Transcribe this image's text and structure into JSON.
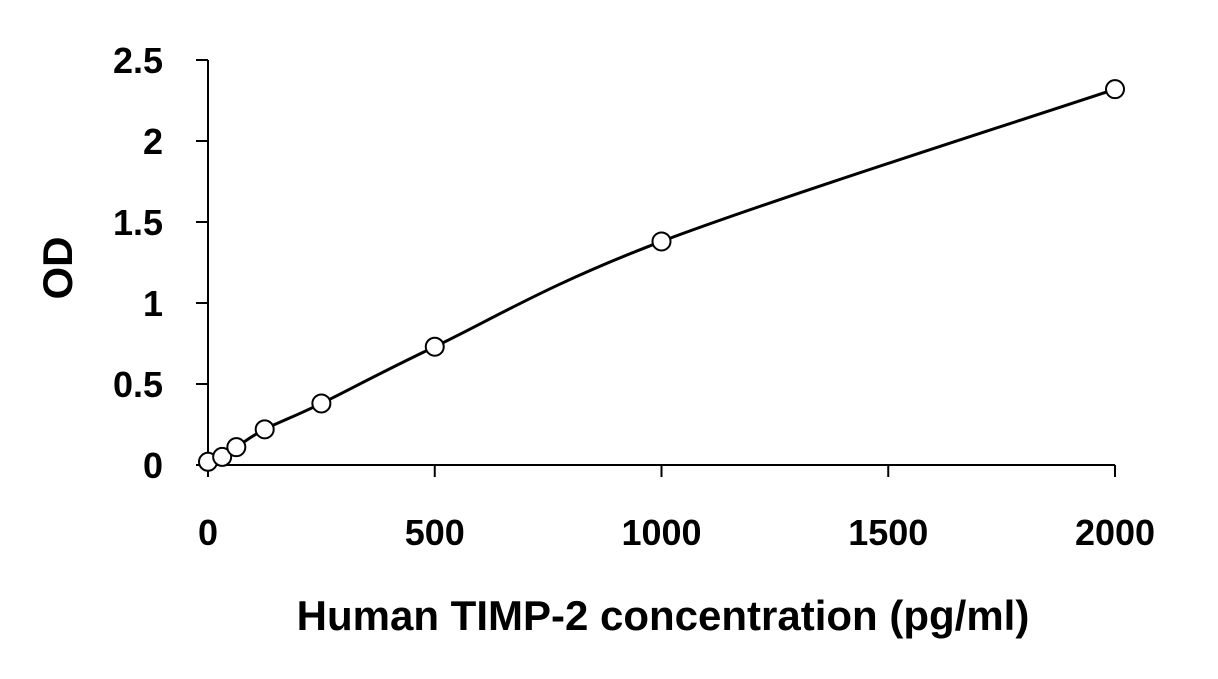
{
  "chart_data": {
    "type": "scatter",
    "title": "",
    "xlabel": "Human TIMP-2 concentration (pg/ml)",
    "ylabel": "OD",
    "xlim": [
      0,
      2000
    ],
    "ylim": [
      0,
      2.5
    ],
    "x_ticks": [
      "0",
      "500",
      "1000",
      "1500",
      "2000"
    ],
    "y_ticks": [
      "0",
      "0.5",
      "1",
      "1.5",
      "2",
      "2.5"
    ],
    "grid": false,
    "legend": "none",
    "series": [
      {
        "x": [
          0,
          31.25,
          62.5,
          125,
          250,
          500,
          1000,
          2000
        ],
        "y": [
          0.02,
          0.05,
          0.11,
          0.22,
          0.38,
          0.73,
          1.38,
          2.32
        ],
        "marker": "open-circle",
        "fit_curve": true
      }
    ],
    "colors": {
      "line": "#000000",
      "marker_fill": "#ffffff",
      "marker_stroke": "#000000"
    }
  }
}
